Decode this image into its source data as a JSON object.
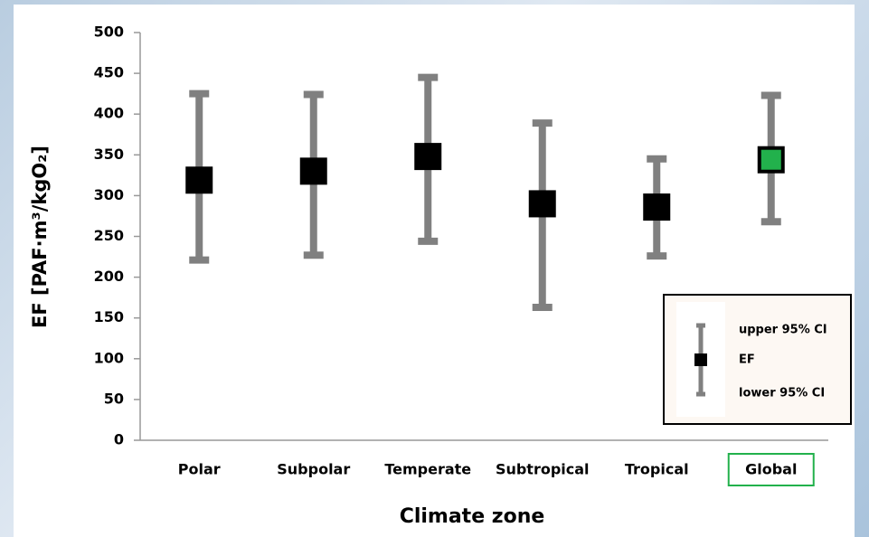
{
  "chart_data": {
    "type": "errorbar",
    "x_label": "Climate zone",
    "y_label": "EF [PAF·m³/kgO₂]",
    "categories": [
      "Polar",
      "Subpolar",
      "Temperate",
      "Subtropical",
      "Tropical",
      "Global"
    ],
    "values": [
      319,
      330,
      348,
      290,
      286,
      344
    ],
    "lower": [
      221,
      227,
      244,
      163,
      226,
      268
    ],
    "upper": [
      425,
      424,
      445,
      389,
      345,
      423
    ],
    "point_colors": [
      "#000000",
      "#000000",
      "#000000",
      "#000000",
      "#000000",
      "#22b14c"
    ],
    "bar_color": "#808080",
    "highlight_category_index": 5,
    "ylim": [
      0,
      500
    ],
    "yticks": [
      0,
      50,
      100,
      150,
      200,
      250,
      300,
      350,
      400,
      450,
      500
    ],
    "legend": {
      "upper": "upper 95% CI",
      "value": "EF",
      "lower": "lower 95% CI",
      "position": "lower right"
    }
  }
}
